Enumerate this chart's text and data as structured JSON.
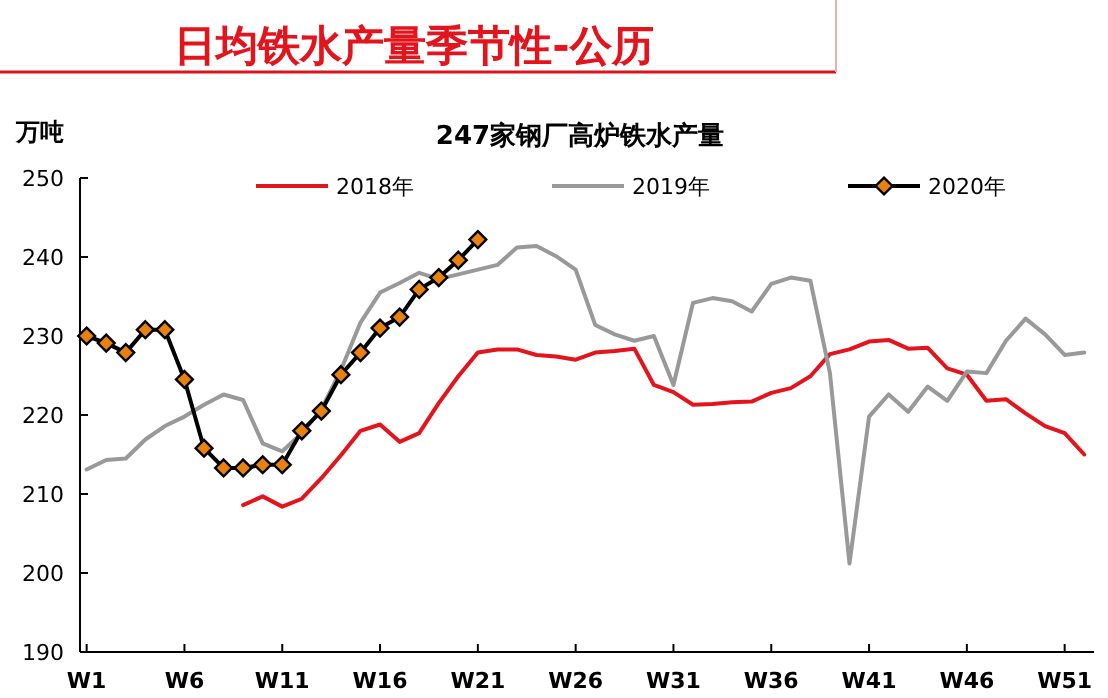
{
  "chart_data": {
    "type": "line",
    "title": "日均铁水产量季节性-公历",
    "subtitle": "247家钢厂高炉铁水产量",
    "ylabel": "万吨",
    "categories": [
      "W1",
      null,
      null,
      null,
      null,
      "W6",
      null,
      null,
      null,
      null,
      "W11",
      null,
      null,
      null,
      null,
      "W16",
      null,
      null,
      null,
      null,
      "W21",
      null,
      null,
      null,
      null,
      "W26",
      null,
      null,
      null,
      null,
      "W31",
      null,
      null,
      null,
      null,
      "W36",
      null,
      null,
      null,
      null,
      "W41",
      null,
      null,
      null,
      null,
      "W46",
      null,
      null,
      null,
      null,
      "W51",
      null
    ],
    "ylim": [
      190,
      250
    ],
    "yticks": [
      190,
      200,
      210,
      220,
      230,
      240,
      250
    ],
    "legend": "top",
    "marker": "none",
    "line_style": "solid",
    "series": [
      {
        "name": "2018年",
        "color": "#e3141c",
        "values": [
          null,
          null,
          null,
          null,
          null,
          null,
          null,
          null,
          208.6,
          209.7,
          208.4,
          209.4,
          212.0,
          214.9,
          218.0,
          218.8,
          216.6,
          217.7,
          221.5,
          224.9,
          227.9,
          228.3,
          228.3,
          227.6,
          227.4,
          227.0,
          227.9,
          228.1,
          228.4,
          223.8,
          222.9,
          221.3,
          221.4,
          221.6,
          221.7,
          222.8,
          223.4,
          224.9,
          227.7,
          228.3,
          229.3,
          229.5,
          228.4,
          228.5,
          225.9,
          225.1,
          221.8,
          222.0,
          220.2,
          218.6,
          217.7,
          215.0
        ]
      },
      {
        "name": "2019年",
        "color": "#999999",
        "values": [
          213.1,
          214.3,
          214.5,
          216.9,
          218.6,
          219.8,
          221.3,
          222.6,
          221.9,
          216.4,
          215.4,
          217.7,
          220.7,
          225.7,
          231.7,
          235.5,
          236.7,
          238.0,
          237.2,
          237.8,
          238.4,
          239.0,
          241.2,
          241.4,
          240.1,
          238.4,
          231.4,
          230.2,
          229.4,
          230.0,
          223.8,
          234.2,
          234.8,
          234.4,
          233.1,
          236.6,
          237.4,
          237.0,
          225.3,
          201.2,
          219.8,
          222.6,
          220.4,
          223.6,
          221.8,
          225.5,
          225.3,
          229.4,
          232.2,
          230.2,
          227.6,
          227.9
        ]
      },
      {
        "name": "2020年",
        "color": "#000000",
        "marker": "diamond",
        "colors": [
          "#e8820c",
          "#e8820c",
          "#e8820c",
          "#e8820c",
          "#e8820c",
          "#e8820c",
          "#e8820c",
          "#e8820c",
          "#e8820c",
          "#e8820c",
          "#e8820c",
          "#e8820c",
          "#e8820c",
          "#e8820c",
          "#e8820c",
          "#e8820c",
          "#e8820c",
          "#e8820c",
          "#e8820c",
          "#e8820c",
          "#e8820c",
          null,
          null,
          null,
          null,
          null,
          null,
          null,
          null,
          null,
          null,
          null,
          null,
          null,
          null,
          null,
          null,
          null,
          null,
          null,
          null,
          null,
          null,
          null,
          null,
          null,
          null,
          null,
          null,
          null,
          null,
          null
        ],
        "values": [
          230.0,
          229.1,
          227.9,
          230.8,
          230.8,
          224.5,
          215.8,
          213.3,
          213.3,
          213.7,
          213.7,
          218.0,
          220.5,
          225.1,
          227.9,
          231.0,
          232.4,
          235.9,
          237.4,
          239.6,
          242.2,
          null,
          null,
          null,
          null,
          null,
          null,
          null,
          null,
          null,
          null,
          null,
          null,
          null,
          null,
          null,
          null,
          null,
          null,
          null,
          null,
          null,
          null,
          null,
          null,
          null,
          null,
          null,
          null,
          null,
          null,
          null
        ]
      }
    ]
  }
}
